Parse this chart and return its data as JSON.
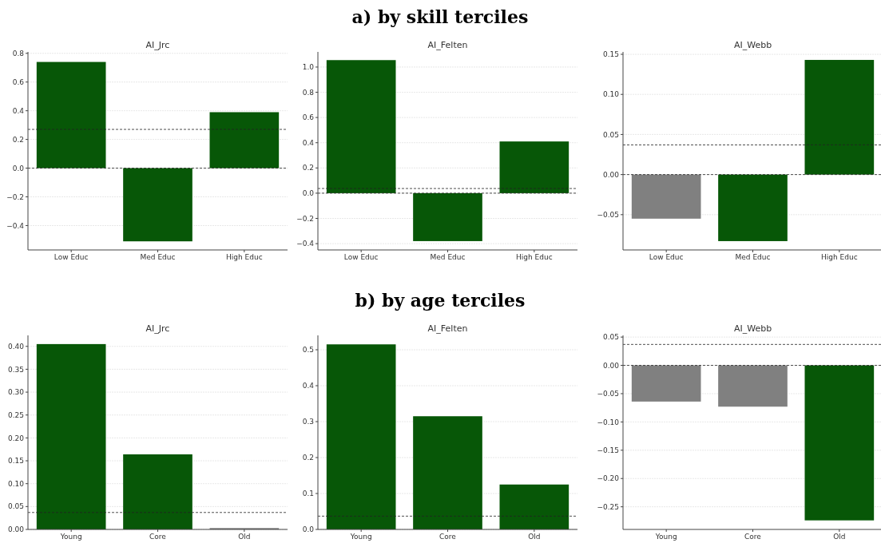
{
  "chart_data": [
    {
      "type": "bar",
      "title": "AI_Jrc",
      "annotations": [
        "a) by skill terciles"
      ],
      "categories": [
        "Low Educ",
        "Med Educ",
        "High Educ"
      ],
      "values": [
        0.74,
        -0.51,
        0.39
      ],
      "colors": [
        "#075707",
        "#075707",
        "#075707"
      ],
      "ylim": [
        -0.57,
        0.81
      ],
      "yticks": [
        {
          "value": -0.4,
          "label": "−0.4"
        },
        {
          "value": -0.2,
          "label": "−0.2"
        },
        {
          "value": 0,
          "label": "0.0"
        },
        0.2,
        0.4,
        0.6,
        0.8
      ],
      "grid": "y",
      "ref_lines": [
        {
          "axis": "y",
          "value": 0.27,
          "line_style": "dashed"
        },
        {
          "axis": "y",
          "value": 0,
          "line_style": "dashed"
        }
      ]
    },
    {
      "type": "bar",
      "title": "AI_Felten",
      "categories": [
        "Low Educ",
        "Med Educ",
        "High Educ"
      ],
      "values": [
        1.055,
        -0.38,
        0.41
      ],
      "colors": [
        "#075707",
        "#075707",
        "#075707"
      ],
      "ylim": [
        -0.45,
        1.12
      ],
      "yticks": [
        {
          "value": -0.4,
          "label": "−0.4"
        },
        {
          "value": -0.2,
          "label": "−0.2"
        },
        {
          "value": 0,
          "label": "0.0"
        },
        0.2,
        0.4,
        0.6,
        0.8,
        {
          "value": 1,
          "label": "1.0"
        }
      ],
      "grid": "y",
      "ref_lines": [
        {
          "axis": "y",
          "value": 0.037,
          "line_style": "dashed"
        },
        {
          "axis": "y",
          "value": 0,
          "line_style": "dashed"
        }
      ]
    },
    {
      "type": "bar",
      "title": "AI_Webb",
      "categories": [
        "Low Educ",
        "Med Educ",
        "High Educ"
      ],
      "values": [
        -0.055,
        -0.083,
        0.143
      ],
      "colors": [
        "#808080",
        "#075707",
        "#075707"
      ],
      "ylim": [
        -0.094,
        0.153
      ],
      "yticks": [
        {
          "value": -0.05,
          "label": "−0.05"
        },
        {
          "value": 0,
          "label": "0.00"
        },
        0.05,
        {
          "value": 0.1,
          "label": "0.10"
        },
        0.15
      ],
      "grid": "y",
      "ref_lines": [
        {
          "axis": "y",
          "value": 0.037,
          "line_style": "dashed"
        },
        {
          "axis": "y",
          "value": 0,
          "line_style": "dashed"
        }
      ]
    },
    {
      "type": "bar",
      "title": "AI_Jrc",
      "annotations": [
        "b) by age terciles"
      ],
      "categories": [
        "Young",
        "Core",
        "Old"
      ],
      "values": [
        0.405,
        0.164,
        0.003
      ],
      "colors": [
        "#075707",
        "#075707",
        "#808080"
      ],
      "ylim": [
        0,
        0.424
      ],
      "yticks": [
        {
          "value": 0,
          "label": "0.00"
        },
        0.05,
        {
          "value": 0.1,
          "label": "0.10"
        },
        0.15,
        {
          "value": 0.2,
          "label": "0.20"
        },
        0.25,
        {
          "value": 0.3,
          "label": "0.30"
        },
        0.35,
        {
          "value": 0.4,
          "label": "0.40"
        }
      ],
      "grid": "y",
      "ref_lines": [
        {
          "axis": "y",
          "value": 0.037,
          "line_style": "dashed"
        }
      ]
    },
    {
      "type": "bar",
      "title": "AI_Felten",
      "categories": [
        "Young",
        "Core",
        "Old"
      ],
      "values": [
        0.515,
        0.315,
        0.125
      ],
      "colors": [
        "#075707",
        "#075707",
        "#075707"
      ],
      "ylim": [
        0,
        0.54
      ],
      "yticks": [
        {
          "value": 0,
          "label": "0.0"
        },
        0.1,
        0.2,
        0.3,
        0.4,
        0.5
      ],
      "grid": "y",
      "ref_lines": [
        {
          "axis": "y",
          "value": 0.037,
          "line_style": "dashed"
        }
      ]
    },
    {
      "type": "bar",
      "title": "AI_Webb",
      "categories": [
        "Young",
        "Core",
        "Old"
      ],
      "values": [
        -0.064,
        -0.073,
        -0.274
      ],
      "colors": [
        "#808080",
        "#808080",
        "#075707"
      ],
      "ylim": [
        -0.29,
        0.053
      ],
      "yticks": [
        {
          "value": -0.25,
          "label": "−0.25"
        },
        {
          "value": -0.2,
          "label": "−0.20"
        },
        {
          "value": -0.15,
          "label": "−0.15"
        },
        {
          "value": -0.1,
          "label": "−0.10"
        },
        {
          "value": -0.05,
          "label": "−0.05"
        },
        {
          "value": 0,
          "label": "0.00"
        },
        0.05
      ],
      "grid": "y",
      "ref_lines": [
        {
          "axis": "y",
          "value": 0.037,
          "line_style": "dashed"
        },
        {
          "axis": "y",
          "value": 0,
          "line_style": "dashed"
        }
      ]
    }
  ]
}
